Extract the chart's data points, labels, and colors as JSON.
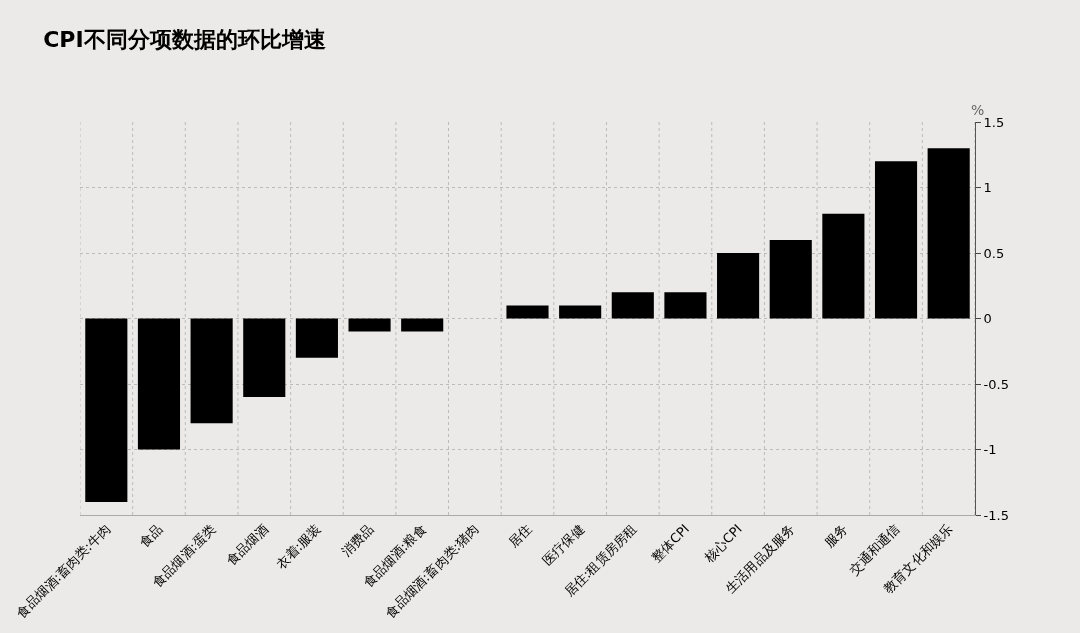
{
  "chart_data": {
    "type": "bar",
    "title": "CPI不同分项数据的环比增速",
    "ylabel": "%",
    "categories": [
      "食品烟酒:畜肉类:牛肉",
      "食品",
      "食品烟酒:蛋类",
      "食品烟酒",
      "衣着:服装",
      "消费品",
      "食品烟酒:粮食",
      "食品烟酒:畜肉类:猪肉",
      "居住",
      "医疗保健",
      "居住:租赁房房租",
      "整体CPI",
      "核心CPI",
      "生活用品及服务",
      "服务",
      "交通和通信",
      "教育文化和娱乐"
    ],
    "values": [
      -1.4,
      -1.0,
      -0.8,
      -0.6,
      -0.3,
      -0.1,
      -0.1,
      0,
      0.1,
      0.1,
      0.2,
      0.2,
      0.5,
      0.6,
      0.8,
      1.2,
      1.3
    ],
    "color": "#000000",
    "ylim": [
      -1.5,
      1.5
    ],
    "yticks": [
      {
        "value": -1.5,
        "label": "-1.5"
      },
      {
        "value": -1,
        "label": "-1"
      },
      {
        "value": -0.5,
        "label": "-0.5"
      },
      {
        "value": 0,
        "label": "0"
      },
      {
        "value": 0.5,
        "label": "0.5"
      },
      {
        "value": 1,
        "label": "1"
      },
      {
        "value": 1.5,
        "label": "1.5"
      }
    ],
    "grid": true
  }
}
